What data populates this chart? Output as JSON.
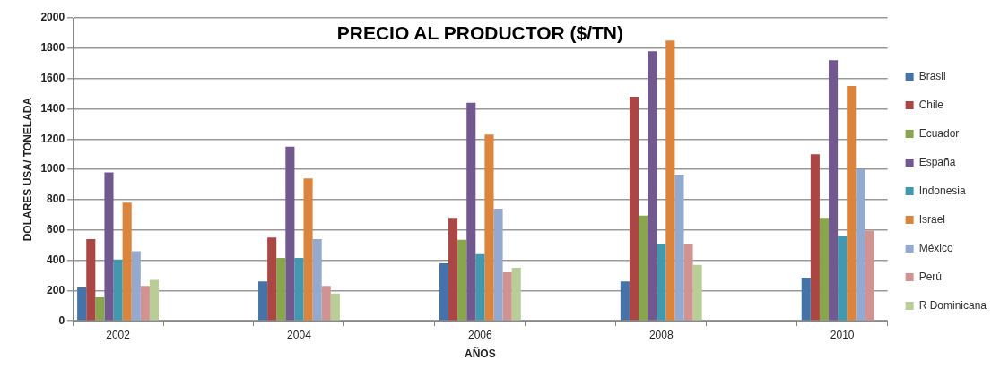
{
  "chart_data": {
    "type": "bar",
    "title": "PRECIO AL PRODUCTOR ($/TN)",
    "xlabel": "AÑOS",
    "ylabel": "DOLARES USA/ TONELADA",
    "categories": [
      "2002",
      null,
      "2004",
      null,
      "2006",
      null,
      "2008",
      null,
      "2010"
    ],
    "series": [
      {
        "name": "Brasil",
        "color": "#4572a7",
        "values": [
          220,
          null,
          260,
          null,
          380,
          null,
          260,
          null,
          285
        ]
      },
      {
        "name": "Chile",
        "color": "#aa4643",
        "values": [
          540,
          null,
          550,
          null,
          680,
          null,
          1480,
          null,
          1100
        ]
      },
      {
        "name": "Ecuador",
        "color": "#89a54e",
        "values": [
          155,
          null,
          415,
          null,
          535,
          null,
          695,
          null,
          680
        ]
      },
      {
        "name": "España",
        "color": "#71588f",
        "values": [
          980,
          null,
          1150,
          null,
          1440,
          null,
          1780,
          null,
          1720
        ]
      },
      {
        "name": "Indonesia",
        "color": "#4198af",
        "values": [
          405,
          null,
          415,
          null,
          440,
          null,
          510,
          null,
          560
        ]
      },
      {
        "name": "Israel",
        "color": "#db843d",
        "values": [
          780,
          null,
          940,
          null,
          1230,
          null,
          1850,
          null,
          1550
        ]
      },
      {
        "name": "México",
        "color": "#93a9cf",
        "values": [
          460,
          null,
          540,
          null,
          740,
          null,
          965,
          null,
          1000
        ]
      },
      {
        "name": "Perú",
        "color": "#d19392",
        "values": [
          230,
          null,
          230,
          null,
          320,
          null,
          510,
          null,
          595
        ]
      },
      {
        "name": "R Dominicana",
        "color": "#b9cd96",
        "values": [
          270,
          null,
          180,
          null,
          350,
          null,
          370,
          null,
          null
        ]
      }
    ],
    "ylim": [
      0,
      2000
    ],
    "yticks": [
      0,
      200,
      400,
      600,
      800,
      1000,
      1200,
      1400,
      1600,
      1800,
      2000
    ],
    "grid": "y",
    "legend": "right"
  }
}
